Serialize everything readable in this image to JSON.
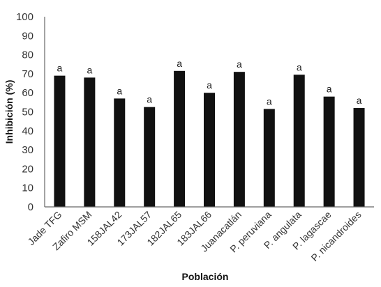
{
  "chart_data": {
    "type": "bar",
    "xlabel": "Población",
    "ylabel": "Inhibición (%)",
    "ylim": [
      0,
      100
    ],
    "yticks": [
      "0",
      "10",
      "20",
      "30",
      "40",
      "50",
      "60",
      "70",
      "80",
      "90",
      "100"
    ],
    "categories": [
      "Jade TFG",
      "Zafiro MSM",
      "158JAL42",
      "173JAL57",
      "182JAL65",
      "183JAL66",
      "Juanacatlán",
      "P. peruviana",
      "P. angulata",
      "P. lagascae",
      "P. nicandroides"
    ],
    "values": [
      69,
      68,
      57,
      52.5,
      71.5,
      60,
      71,
      51.5,
      69.5,
      58,
      52
    ],
    "annotations": [
      "a",
      "a",
      "a",
      "a",
      "a",
      "a",
      "a",
      "a",
      "a",
      "a",
      "a"
    ],
    "grid": false,
    "legend": "none",
    "bar_color": "#111111",
    "axis_color": "#666666"
  }
}
